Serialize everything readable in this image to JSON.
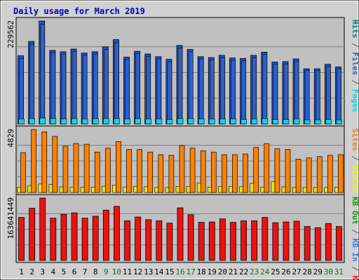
{
  "chart_data": {
    "type": "bar",
    "title": "Daily usage for March 2019",
    "categories": [
      "1",
      "2",
      "3",
      "4",
      "5",
      "6",
      "7",
      "8",
      "9",
      "10",
      "11",
      "12",
      "13",
      "14",
      "15",
      "16",
      "17",
      "18",
      "19",
      "20",
      "21",
      "22",
      "23",
      "24",
      "25",
      "26",
      "27",
      "28",
      "29",
      "30",
      "31"
    ],
    "weekend_days": [
      "9",
      "10",
      "16",
      "17",
      "23",
      "24",
      "30",
      "31"
    ],
    "panels": [
      {
        "id": "hits",
        "ymax_label": "229562",
        "ymax": 229562,
        "right_legend": [
          {
            "text": "Pages",
            "color": "#00e0e0"
          },
          {
            "text": " / ",
            "color": "#555555"
          },
          {
            "text": "Files",
            "color": "#3060c0"
          },
          {
            "text": " / ",
            "color": "#555555"
          },
          {
            "text": "Hits",
            "color": "#008080"
          }
        ],
        "series": [
          {
            "name": "Hits",
            "color": "#2050e0",
            "values": [
              152000,
              184000,
              229562,
              164000,
              161000,
              167000,
              158000,
              161000,
              172000,
              188000,
              149000,
              162000,
              156000,
              150000,
              144000,
              175000,
              166000,
              150000,
              148000,
              153000,
              147000,
              146000,
              153000,
              160000,
              138000,
              139000,
              145000,
              123000,
              123000,
              133000,
              127000
            ]
          },
          {
            "name": "Files",
            "color": "#3060c0",
            "values": [
              146000,
              178000,
              222000,
              159000,
              156000,
              161000,
              153000,
              156000,
              166000,
              182000,
              144000,
              157000,
              151000,
              145000,
              139000,
              169000,
              161000,
              145000,
              143000,
              148000,
              142000,
              141000,
              148000,
              155000,
              133000,
              134000,
              140000,
              119000,
              119000,
              128000,
              123000
            ]
          },
          {
            "name": "Pages",
            "color": "#00d8f0",
            "values": [
              11000,
              12000,
              13000,
              12000,
              11000,
              12000,
              11000,
              12000,
              12000,
              12000,
              11000,
              12000,
              11000,
              11000,
              10000,
              12000,
              12000,
              11000,
              11000,
              11000,
              11000,
              10000,
              11000,
              12000,
              10000,
              10000,
              11000,
              9000,
              9000,
              10000,
              9000
            ]
          }
        ]
      },
      {
        "id": "visits",
        "ymax_label": "4829",
        "ymax": 4829,
        "right_legend": [
          {
            "text": "Visits",
            "color": "#f0f000"
          },
          {
            "text": " / ",
            "color": "#555555"
          },
          {
            "text": "Sites",
            "color": "#ff8000"
          }
        ],
        "series": [
          {
            "name": "Sites",
            "color": "#ff8000",
            "values": [
              3050,
              4829,
              4650,
              4300,
              3550,
              3750,
              3700,
              3100,
              3400,
              3900,
              3300,
              3300,
              3100,
              2900,
              2850,
              3600,
              3400,
              3200,
              3100,
              2900,
              2900,
              2950,
              3450,
              3750,
              3350,
              3300,
              2550,
              2650,
              2750,
              2850,
              2900
            ]
          },
          {
            "name": "Visits",
            "color": "#f0e000",
            "values": [
              380,
              530,
              650,
              610,
              430,
              420,
              400,
              410,
              480,
              560,
              420,
              470,
              440,
              380,
              380,
              460,
              470,
              720,
              410,
              470,
              470,
              440,
              700,
              410,
              850,
              430,
              380,
              380,
              380,
              380,
              400
            ]
          }
        ]
      },
      {
        "id": "kbf",
        "ymax_label": "163641449",
        "ymax": 163641449,
        "right_legend": [
          {
            "text": "KB F",
            "color": "#ff2020"
          },
          {
            "text": " / ",
            "color": "#555555"
          },
          {
            "text": "KB In",
            "color": "#3080ff"
          },
          {
            "text": " / ",
            "color": "#555555"
          },
          {
            "text": "KB Out",
            "color": "#00a000"
          }
        ],
        "series": [
          {
            "name": "KB F",
            "color": "#ee1111",
            "values": [
              113000000,
              137000000,
              163641449,
              111000000,
              121000000,
              125000000,
              111000000,
              116000000,
              132000000,
              142000000,
              104000000,
              114000000,
              107000000,
              104000000,
              98000000,
              138000000,
              120000000,
              100000000,
              101000000,
              109000000,
              100000000,
              104000000,
              104000000,
              113000000,
              99000000,
              101000000,
              103000000,
              89000000,
              86000000,
              97000000,
              89000000
            ]
          }
        ]
      }
    ]
  }
}
